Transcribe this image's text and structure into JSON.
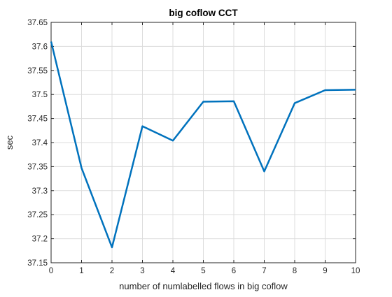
{
  "chart_data": {
    "type": "line",
    "title": "big coflow CCT",
    "xlabel": "number of numlabelled flows in big coflow",
    "ylabel": "sec",
    "xlim": [
      0,
      10
    ],
    "ylim": [
      37.15,
      37.65
    ],
    "xticks": [
      0,
      1,
      2,
      3,
      4,
      5,
      6,
      7,
      8,
      9,
      10
    ],
    "xtick_labels": [
      "0",
      "1",
      "2",
      "3",
      "4",
      "5",
      "6",
      "7",
      "8",
      "9",
      "10"
    ],
    "yticks": [
      37.15,
      37.2,
      37.25,
      37.3,
      37.35,
      37.4,
      37.45,
      37.5,
      37.55,
      37.6,
      37.65
    ],
    "ytick_labels": [
      "37.15",
      "37.2",
      "37.25",
      "37.3",
      "37.35",
      "37.4",
      "37.45",
      "37.5",
      "37.55",
      "37.6",
      "37.65"
    ],
    "grid": true,
    "series": [
      {
        "color": "#0072BD",
        "x": [
          0,
          1,
          2,
          3,
          4,
          5,
          6,
          7,
          8,
          9,
          10
        ],
        "y": [
          37.61,
          37.347,
          37.182,
          37.434,
          37.404,
          37.485,
          37.486,
          37.34,
          37.482,
          37.509,
          37.51
        ]
      }
    ]
  }
}
